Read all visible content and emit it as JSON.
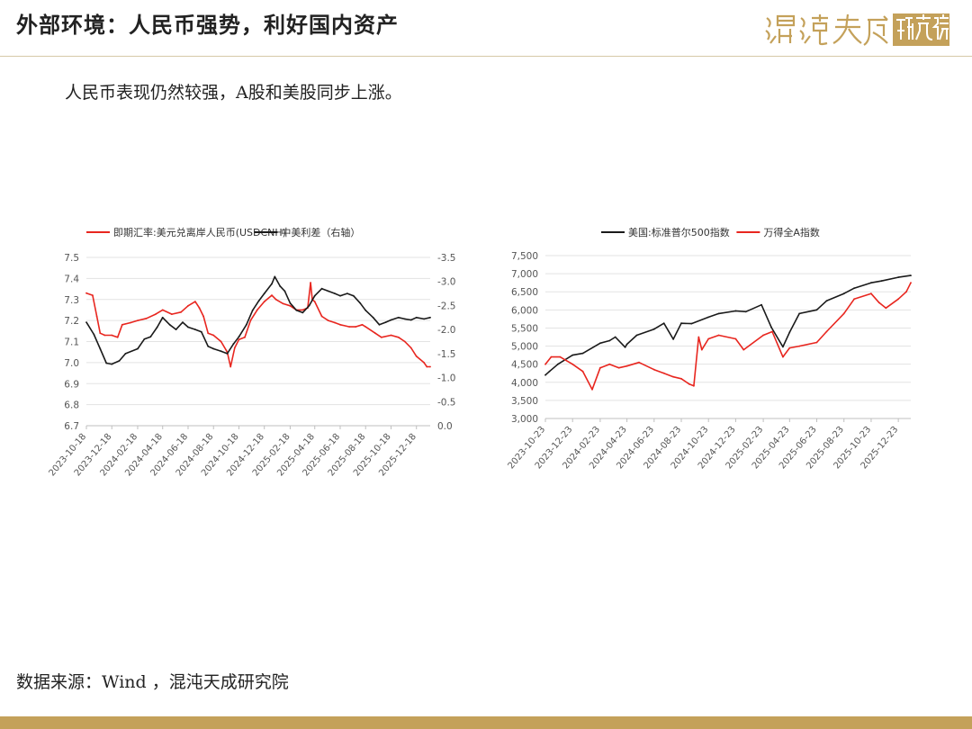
{
  "header": {
    "title": "外部环境：人民币强势，利好国内资产",
    "brand": "混沌天成研究院"
  },
  "subtitle": "人民币表现仍然较强，A股和美股同步上涨。",
  "source": "数据来源：Wind ，混沌天成研究院",
  "colors": {
    "red": "#e8261f",
    "black": "#1a1a1a",
    "gold": "#c4a15a"
  },
  "chart_data": [
    {
      "type": "line",
      "legend_position": "top",
      "grid": true,
      "x_type": "date",
      "xlim": [
        "2023-10-18",
        "2026-01-20"
      ],
      "x_ticks": [
        "2023-10-18",
        "2023-12-18",
        "2024-02-18",
        "2024-04-18",
        "2024-06-18",
        "2024-08-18",
        "2024-10-18",
        "2024-12-18",
        "2025-02-18",
        "2025-04-18",
        "2025-06-18",
        "2025-08-18",
        "2025-10-18",
        "2025-12-18"
      ],
      "y_left": {
        "ylim": [
          6.7,
          7.5
        ],
        "ticks": [
          "7.5",
          "7.4",
          "7.3",
          "7.2",
          "7.1",
          "7.0",
          "6.9",
          "6.8",
          "6.7"
        ]
      },
      "y_right": {
        "ylim": [
          0.0,
          -3.5
        ],
        "ticks": [
          "-3.5",
          "-3.0",
          "-2.5",
          "-2.0",
          "-1.5",
          "-1.0",
          "-0.5",
          "0.0"
        ]
      },
      "series": [
        {
          "name": "即期汇率:美元兑离岸人民币(USDCNH)",
          "color": "#e8261f",
          "axis": "left",
          "points": [
            [
              "2023-10-18",
              7.33
            ],
            [
              "2023-11-02",
              7.32
            ],
            [
              "2023-11-12",
              7.22
            ],
            [
              "2023-11-20",
              7.14
            ],
            [
              "2023-12-01",
              7.13
            ],
            [
              "2023-12-18",
              7.13
            ],
            [
              "2024-01-01",
              7.12
            ],
            [
              "2024-01-12",
              7.18
            ],
            [
              "2024-02-01",
              7.19
            ],
            [
              "2024-02-18",
              7.2
            ],
            [
              "2024-03-10",
              7.21
            ],
            [
              "2024-04-01",
              7.23
            ],
            [
              "2024-04-18",
              7.25
            ],
            [
              "2024-05-10",
              7.23
            ],
            [
              "2024-06-01",
              7.24
            ],
            [
              "2024-06-18",
              7.27
            ],
            [
              "2024-07-05",
              7.29
            ],
            [
              "2024-07-15",
              7.26
            ],
            [
              "2024-07-25",
              7.22
            ],
            [
              "2024-08-05",
              7.14
            ],
            [
              "2024-08-18",
              7.13
            ],
            [
              "2024-09-05",
              7.1
            ],
            [
              "2024-09-20",
              7.05
            ],
            [
              "2024-09-28",
              6.98
            ],
            [
              "2024-10-08",
              7.07
            ],
            [
              "2024-10-18",
              7.11
            ],
            [
              "2024-11-01",
              7.12
            ],
            [
              "2024-11-15",
              7.2
            ],
            [
              "2024-12-01",
              7.25
            ],
            [
              "2024-12-18",
              7.29
            ],
            [
              "2025-01-05",
              7.32
            ],
            [
              "2025-01-15",
              7.3
            ],
            [
              "2025-02-01",
              7.28
            ],
            [
              "2025-02-18",
              7.27
            ],
            [
              "2025-03-05",
              7.25
            ],
            [
              "2025-03-20",
              7.25
            ],
            [
              "2025-04-01",
              7.26
            ],
            [
              "2025-04-08",
              7.38
            ],
            [
              "2025-04-12",
              7.3
            ],
            [
              "2025-04-18",
              7.29
            ],
            [
              "2025-05-05",
              7.22
            ],
            [
              "2025-05-20",
              7.2
            ],
            [
              "2025-06-05",
              7.19
            ],
            [
              "2025-06-18",
              7.18
            ],
            [
              "2025-07-10",
              7.17
            ],
            [
              "2025-07-25",
              7.17
            ],
            [
              "2025-08-10",
              7.18
            ],
            [
              "2025-08-18",
              7.17
            ],
            [
              "2025-09-10",
              7.14
            ],
            [
              "2025-09-25",
              7.12
            ],
            [
              "2025-10-18",
              7.13
            ],
            [
              "2025-11-05",
              7.12
            ],
            [
              "2025-11-20",
              7.1
            ],
            [
              "2025-12-05",
              7.07
            ],
            [
              "2025-12-18",
              7.03
            ],
            [
              "2026-01-05",
              7.0
            ],
            [
              "2026-01-12",
              6.98
            ],
            [
              "2026-01-20",
              6.98
            ]
          ]
        },
        {
          "name": "中美利差（右轴）",
          "color": "#1a1a1a",
          "axis": "right",
          "points": [
            [
              "2023-10-18",
              -2.15
            ],
            [
              "2023-11-05",
              -1.9
            ],
            [
              "2023-11-20",
              -1.6
            ],
            [
              "2023-12-05",
              -1.3
            ],
            [
              "2023-12-18",
              -1.28
            ],
            [
              "2024-01-05",
              -1.35
            ],
            [
              "2024-01-20",
              -1.5
            ],
            [
              "2024-02-18",
              -1.6
            ],
            [
              "2024-03-05",
              -1.8
            ],
            [
              "2024-03-20",
              -1.85
            ],
            [
              "2024-04-05",
              -2.05
            ],
            [
              "2024-04-18",
              -2.25
            ],
            [
              "2024-05-05",
              -2.1
            ],
            [
              "2024-05-20",
              -2.0
            ],
            [
              "2024-06-05",
              -2.15
            ],
            [
              "2024-06-18",
              -2.05
            ],
            [
              "2024-07-05",
              -2.0
            ],
            [
              "2024-07-20",
              -1.95
            ],
            [
              "2024-08-05",
              -1.65
            ],
            [
              "2024-08-18",
              -1.6
            ],
            [
              "2024-09-05",
              -1.55
            ],
            [
              "2024-09-20",
              -1.5
            ],
            [
              "2024-10-05",
              -1.7
            ],
            [
              "2024-10-18",
              -1.85
            ],
            [
              "2024-11-05",
              -2.1
            ],
            [
              "2024-11-20",
              -2.4
            ],
            [
              "2024-12-05",
              -2.6
            ],
            [
              "2024-12-18",
              -2.75
            ],
            [
              "2025-01-05",
              -2.95
            ],
            [
              "2025-01-12",
              -3.1
            ],
            [
              "2025-01-25",
              -2.9
            ],
            [
              "2025-02-05",
              -2.8
            ],
            [
              "2025-02-18",
              -2.55
            ],
            [
              "2025-03-05",
              -2.4
            ],
            [
              "2025-03-20",
              -2.35
            ],
            [
              "2025-04-05",
              -2.5
            ],
            [
              "2025-04-18",
              -2.7
            ],
            [
              "2025-05-05",
              -2.85
            ],
            [
              "2025-05-20",
              -2.8
            ],
            [
              "2025-06-05",
              -2.75
            ],
            [
              "2025-06-18",
              -2.7
            ],
            [
              "2025-07-05",
              -2.75
            ],
            [
              "2025-07-20",
              -2.7
            ],
            [
              "2025-08-05",
              -2.55
            ],
            [
              "2025-08-18",
              -2.4
            ],
            [
              "2025-09-05",
              -2.25
            ],
            [
              "2025-09-20",
              -2.1
            ],
            [
              "2025-10-05",
              -2.15
            ],
            [
              "2025-10-18",
              -2.2
            ],
            [
              "2025-11-05",
              -2.25
            ],
            [
              "2025-11-20",
              -2.22
            ],
            [
              "2025-12-05",
              -2.2
            ],
            [
              "2025-12-18",
              -2.25
            ],
            [
              "2026-01-05",
              -2.22
            ],
            [
              "2026-01-20",
              -2.25
            ]
          ]
        }
      ]
    },
    {
      "type": "line",
      "legend_position": "top",
      "grid": true,
      "x_type": "date",
      "xlim": [
        "2023-10-23",
        "2026-01-20"
      ],
      "x_ticks": [
        "2023-10-23",
        "2023-12-23",
        "2024-02-23",
        "2024-04-23",
        "2024-06-23",
        "2024-08-23",
        "2024-10-23",
        "2024-12-23",
        "2025-02-23",
        "2025-04-23",
        "2025-06-23",
        "2025-08-23",
        "2025-10-23",
        "2025-12-23"
      ],
      "y_left": {
        "ylim": [
          3000,
          7500
        ],
        "ticks": [
          "7,500",
          "7,000",
          "6,500",
          "6,000",
          "5,500",
          "5,000",
          "4,500",
          "4,000",
          "3,500",
          "3,000"
        ]
      },
      "series": [
        {
          "name": "美国:标准普尔500指数",
          "color": "#1a1a1a",
          "axis": "left",
          "points": [
            [
              "2023-10-23",
              4200
            ],
            [
              "2023-11-01",
              4300
            ],
            [
              "2023-11-20",
              4500
            ],
            [
              "2023-12-23",
              4750
            ],
            [
              "2024-01-15",
              4800
            ],
            [
              "2024-02-23",
              5080
            ],
            [
              "2024-03-15",
              5150
            ],
            [
              "2024-03-28",
              5250
            ],
            [
              "2024-04-19",
              4970
            ],
            [
              "2024-04-23",
              5050
            ],
            [
              "2024-05-15",
              5300
            ],
            [
              "2024-06-23",
              5470
            ],
            [
              "2024-07-15",
              5630
            ],
            [
              "2024-08-05",
              5190
            ],
            [
              "2024-08-23",
              5630
            ],
            [
              "2024-09-15",
              5620
            ],
            [
              "2024-10-23",
              5800
            ],
            [
              "2024-11-15",
              5900
            ],
            [
              "2024-12-23",
              5970
            ],
            [
              "2025-01-15",
              5950
            ],
            [
              "2025-02-19",
              6140
            ],
            [
              "2025-03-13",
              5520
            ],
            [
              "2025-04-08",
              4980
            ],
            [
              "2025-04-23",
              5380
            ],
            [
              "2025-05-15",
              5900
            ],
            [
              "2025-06-23",
              6000
            ],
            [
              "2025-07-15",
              6250
            ],
            [
              "2025-08-23",
              6450
            ],
            [
              "2025-09-15",
              6600
            ],
            [
              "2025-10-23",
              6750
            ],
            [
              "2025-11-15",
              6800
            ],
            [
              "2025-12-23",
              6900
            ],
            [
              "2026-01-20",
              6950
            ]
          ]
        },
        {
          "name": "万得全A指数",
          "color": "#e8261f",
          "axis": "left",
          "points": [
            [
              "2023-10-23",
              4500
            ],
            [
              "2023-11-05",
              4700
            ],
            [
              "2023-11-25",
              4700
            ],
            [
              "2023-12-23",
              4500
            ],
            [
              "2024-01-15",
              4300
            ],
            [
              "2024-02-05",
              3800
            ],
            [
              "2024-02-23",
              4400
            ],
            [
              "2024-03-15",
              4500
            ],
            [
              "2024-04-05",
              4400
            ],
            [
              "2024-04-23",
              4450
            ],
            [
              "2024-05-20",
              4550
            ],
            [
              "2024-06-23",
              4350
            ],
            [
              "2024-07-15",
              4250
            ],
            [
              "2024-08-05",
              4150
            ],
            [
              "2024-08-23",
              4100
            ],
            [
              "2024-09-10",
              3950
            ],
            [
              "2024-09-20",
              3900
            ],
            [
              "2024-10-01",
              5250
            ],
            [
              "2024-10-08",
              4900
            ],
            [
              "2024-10-23",
              5200
            ],
            [
              "2024-11-15",
              5300
            ],
            [
              "2024-12-23",
              5200
            ],
            [
              "2025-01-10",
              4900
            ],
            [
              "2025-02-23",
              5300
            ],
            [
              "2025-03-15",
              5400
            ],
            [
              "2025-04-08",
              4700
            ],
            [
              "2025-04-23",
              4950
            ],
            [
              "2025-05-15",
              5000
            ],
            [
              "2025-06-23",
              5100
            ],
            [
              "2025-07-15",
              5400
            ],
            [
              "2025-08-23",
              5900
            ],
            [
              "2025-09-15",
              6300
            ],
            [
              "2025-10-23",
              6450
            ],
            [
              "2025-11-10",
              6200
            ],
            [
              "2025-11-25",
              6050
            ],
            [
              "2025-12-23",
              6300
            ],
            [
              "2026-01-10",
              6500
            ],
            [
              "2026-01-20",
              6750
            ]
          ]
        }
      ]
    }
  ]
}
